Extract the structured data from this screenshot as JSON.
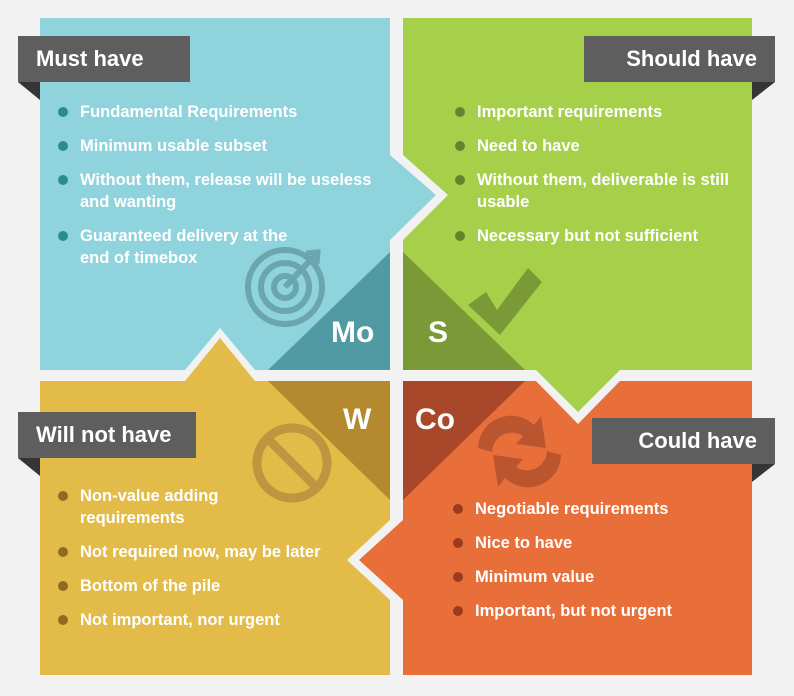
{
  "colors": {
    "must": "#8fd3dd",
    "should": "#a6cf4a",
    "will_not": "#e2bb48",
    "could": "#e96f3a",
    "tab_bg": "#5e5e5e",
    "tab_fold": "#353535"
  },
  "must": {
    "label": "Must have",
    "letter": "Mo",
    "icon": "target-icon",
    "items": [
      "Fundamental Requirements",
      "Minimum usable subset",
      "Without them, release will be useless and wanting",
      "Guaranteed delivery at the end of timebox"
    ]
  },
  "should": {
    "label": "Should have",
    "letter": "S",
    "icon": "checkmark-icon",
    "items": [
      "Important requirements",
      "Need to have",
      "Without them, deliverable is still usable",
      "Necessary but not sufficient"
    ]
  },
  "will_not": {
    "label": "Will not have",
    "letter": "W",
    "icon": "prohibited-icon",
    "items": [
      "Non-value adding requirements",
      "Not required now, may be later",
      "Bottom of the pile",
      "Not important, nor urgent"
    ]
  },
  "could": {
    "label": "Could have",
    "letter": "Co",
    "icon": "refresh-arrows-icon",
    "items": [
      "Negotiable requirements",
      "Nice to have",
      "Minimum value",
      "Important, but not urgent"
    ]
  }
}
